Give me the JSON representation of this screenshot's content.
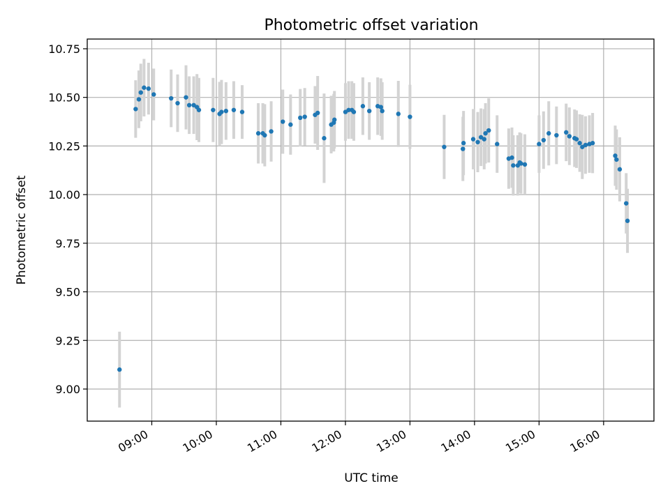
{
  "chart_data": {
    "type": "scatter",
    "title": "Photometric offset variation",
    "xlabel": "UTC time",
    "ylabel": "Photometric offset",
    "x_tick_values": [
      9,
      10,
      11,
      12,
      13,
      14,
      15,
      16
    ],
    "x_tick_labels": [
      "09:00",
      "10:00",
      "11:00",
      "12:00",
      "13:00",
      "14:00",
      "15:00",
      "16:00"
    ],
    "y_tick_values": [
      9.0,
      9.25,
      9.5,
      9.75,
      10.0,
      10.25,
      10.5,
      10.75
    ],
    "y_tick_labels": [
      "9.00",
      "9.25",
      "9.50",
      "9.75",
      "10.00",
      "10.25",
      "10.50",
      "10.75"
    ],
    "xlim_hours": [
      8.0,
      16.78
    ],
    "ylim": [
      8.835,
      10.8
    ],
    "grid": true,
    "colors": {
      "marker": "#1f77b4",
      "errorbar": "#d3d3d3",
      "grid": "#b0b0b0"
    },
    "x_hours": [
      8.5,
      8.75,
      8.8,
      8.83,
      8.88,
      8.95,
      9.03,
      9.3,
      9.4,
      9.53,
      9.58,
      9.65,
      9.7,
      9.73,
      9.95,
      10.05,
      10.08,
      10.15,
      10.27,
      10.4,
      10.65,
      10.72,
      10.75,
      10.85,
      11.03,
      11.15,
      11.3,
      11.37,
      11.53,
      11.57,
      11.67,
      11.78,
      11.82,
      11.83,
      12.0,
      12.05,
      12.1,
      12.13,
      12.27,
      12.37,
      12.5,
      12.55,
      12.57,
      12.82,
      13.0,
      13.53,
      13.82,
      13.83,
      13.98,
      14.05,
      14.1,
      14.15,
      14.17,
      14.22,
      14.35,
      14.53,
      14.58,
      14.6,
      14.67,
      14.7,
      14.72,
      14.78,
      15.0,
      15.07,
      15.15,
      15.27,
      15.42,
      15.47,
      15.55,
      15.58,
      15.63,
      15.67,
      15.72,
      15.78,
      15.83,
      16.18,
      16.2,
      16.25,
      16.35,
      16.37
    ],
    "y_values": [
      9.1,
      10.44,
      10.49,
      10.525,
      10.55,
      10.545,
      10.515,
      10.495,
      10.47,
      10.5,
      10.46,
      10.46,
      10.45,
      10.435,
      10.435,
      10.415,
      10.425,
      10.43,
      10.435,
      10.425,
      10.315,
      10.315,
      10.305,
      10.325,
      10.375,
      10.36,
      10.395,
      10.4,
      10.41,
      10.42,
      10.29,
      10.36,
      10.37,
      10.385,
      10.425,
      10.435,
      10.435,
      10.425,
      10.455,
      10.43,
      10.455,
      10.45,
      10.43,
      10.415,
      10.4,
      10.245,
      10.235,
      10.265,
      10.285,
      10.27,
      10.295,
      10.285,
      10.315,
      10.33,
      10.26,
      10.185,
      10.19,
      10.15,
      10.15,
      10.165,
      10.16,
      10.155,
      10.26,
      10.28,
      10.315,
      10.305,
      10.32,
      10.3,
      10.29,
      10.285,
      10.265,
      10.245,
      10.255,
      10.26,
      10.265,
      10.2,
      10.18,
      10.13,
      9.955,
      9.865
    ],
    "y_errors": [
      0.195,
      0.148,
      0.148,
      0.148,
      0.148,
      0.133,
      0.133,
      0.148,
      0.148,
      0.165,
      0.148,
      0.148,
      0.17,
      0.165,
      0.165,
      0.165,
      0.165,
      0.148,
      0.148,
      0.138,
      0.155,
      0.155,
      0.16,
      0.155,
      0.165,
      0.155,
      0.148,
      0.148,
      0.148,
      0.19,
      0.23,
      0.148,
      0.148,
      0.148,
      0.148,
      0.148,
      0.148,
      0.148,
      0.148,
      0.148,
      0.148,
      0.148,
      0.148,
      0.17,
      0.165,
      0.165,
      0.165,
      0.165,
      0.155,
      0.155,
      0.148,
      0.155,
      0.155,
      0.165,
      0.148,
      0.155,
      0.155,
      0.155,
      0.155,
      0.155,
      0.155,
      0.155,
      0.148,
      0.148,
      0.165,
      0.148,
      0.148,
      0.148,
      0.148,
      0.148,
      0.148,
      0.165,
      0.148,
      0.148,
      0.155,
      0.155,
      0.155,
      0.165,
      0.155,
      0.165
    ]
  }
}
